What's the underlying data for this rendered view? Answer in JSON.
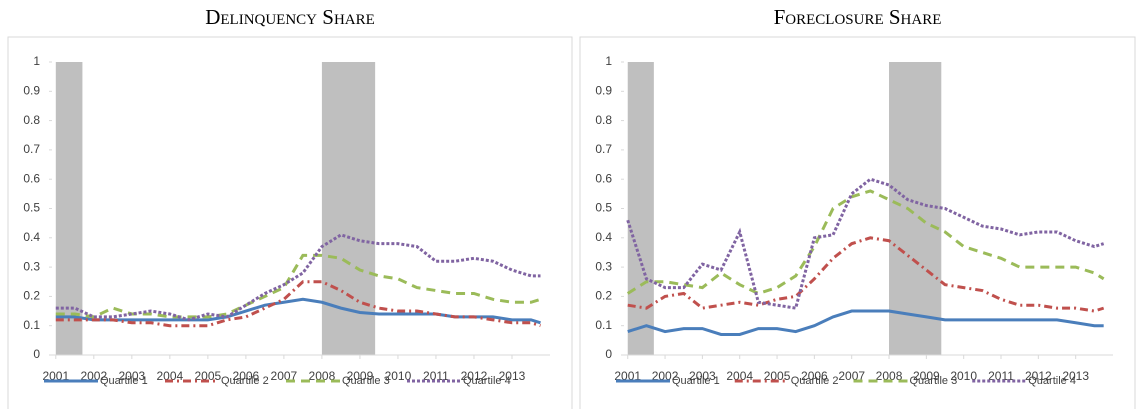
{
  "chart_data": [
    {
      "type": "line",
      "title": "Delinquency Share",
      "x": [
        2001,
        2001.5,
        2002,
        2002.5,
        2003,
        2003.5,
        2004,
        2004.5,
        2005,
        2005.5,
        2006,
        2006.5,
        2007,
        2007.5,
        2008,
        2008.5,
        2009,
        2009.5,
        2010,
        2010.5,
        2011,
        2011.5,
        2012,
        2012.5,
        2013,
        2013.5,
        2013.75
      ],
      "xlim": [
        2000.9,
        2014
      ],
      "xticks": [
        2001,
        2002,
        2003,
        2004,
        2005,
        2006,
        2007,
        2008,
        2009,
        2010,
        2011,
        2012,
        2013
      ],
      "ylim": [
        0,
        1
      ],
      "yticks": [
        0,
        0.1,
        0.2,
        0.3,
        0.4,
        0.5,
        0.6,
        0.7,
        0.8,
        0.9,
        1
      ],
      "grid": false,
      "legend": "bottom",
      "shaded": [
        [
          2001,
          2001.7
        ],
        [
          2008,
          2009.4
        ]
      ],
      "shade_color": "#bfbfbf",
      "series": [
        {
          "name": "Quartile 1",
          "color": "#4a7ebb",
          "dash": "solid",
          "values": [
            0.13,
            0.13,
            0.12,
            0.12,
            0.12,
            0.12,
            0.12,
            0.12,
            0.12,
            0.13,
            0.15,
            0.17,
            0.18,
            0.19,
            0.18,
            0.16,
            0.145,
            0.14,
            0.14,
            0.14,
            0.14,
            0.13,
            0.13,
            0.13,
            0.12,
            0.12,
            0.11
          ]
        },
        {
          "name": "Quartile 2",
          "color": "#c0504d",
          "dash": "dashdot",
          "values": [
            0.12,
            0.12,
            0.12,
            0.12,
            0.11,
            0.11,
            0.1,
            0.1,
            0.1,
            0.12,
            0.13,
            0.16,
            0.19,
            0.25,
            0.25,
            0.22,
            0.18,
            0.16,
            0.15,
            0.15,
            0.14,
            0.13,
            0.13,
            0.12,
            0.11,
            0.11,
            0.1
          ]
        },
        {
          "name": "Quartile 3",
          "color": "#9bbb59",
          "dash": "dashed",
          "values": [
            0.14,
            0.14,
            0.13,
            0.16,
            0.14,
            0.14,
            0.13,
            0.13,
            0.13,
            0.14,
            0.17,
            0.2,
            0.23,
            0.34,
            0.34,
            0.33,
            0.29,
            0.27,
            0.26,
            0.23,
            0.22,
            0.21,
            0.21,
            0.19,
            0.18,
            0.18,
            0.19
          ]
        },
        {
          "name": "Quartile 4",
          "color": "#8064a2",
          "dash": "dotted",
          "values": [
            0.16,
            0.16,
            0.13,
            0.13,
            0.14,
            0.15,
            0.14,
            0.12,
            0.14,
            0.13,
            0.17,
            0.21,
            0.24,
            0.28,
            0.37,
            0.41,
            0.39,
            0.38,
            0.38,
            0.37,
            0.32,
            0.32,
            0.33,
            0.32,
            0.29,
            0.27,
            0.27
          ]
        }
      ]
    },
    {
      "type": "line",
      "title": "Foreclosure Share",
      "x": [
        2001,
        2001.5,
        2002,
        2002.5,
        2003,
        2003.5,
        2004,
        2004.5,
        2005,
        2005.5,
        2006,
        2006.5,
        2007,
        2007.5,
        2008,
        2008.5,
        2009,
        2009.5,
        2010,
        2010.5,
        2011,
        2011.5,
        2012,
        2012.5,
        2013,
        2013.5,
        2013.75
      ],
      "xlim": [
        2000.9,
        2014
      ],
      "xticks": [
        2001,
        2002,
        2003,
        2004,
        2005,
        2006,
        2007,
        2008,
        2009,
        2010,
        2011,
        2012,
        2013
      ],
      "ylim": [
        0,
        1
      ],
      "yticks": [
        0,
        0.1,
        0.2,
        0.3,
        0.4,
        0.5,
        0.6,
        0.7,
        0.8,
        0.9,
        1
      ],
      "grid": false,
      "legend": "bottom",
      "shaded": [
        [
          2001,
          2001.7
        ],
        [
          2008,
          2009.4
        ]
      ],
      "shade_color": "#bfbfbf",
      "series": [
        {
          "name": "Quartile 1",
          "color": "#4a7ebb",
          "dash": "solid",
          "values": [
            0.08,
            0.1,
            0.08,
            0.09,
            0.09,
            0.07,
            0.07,
            0.09,
            0.09,
            0.08,
            0.1,
            0.13,
            0.15,
            0.15,
            0.15,
            0.14,
            0.13,
            0.12,
            0.12,
            0.12,
            0.12,
            0.12,
            0.12,
            0.12,
            0.11,
            0.1,
            0.1
          ]
        },
        {
          "name": "Quartile 2",
          "color": "#c0504d",
          "dash": "dashdot",
          "values": [
            0.17,
            0.16,
            0.2,
            0.21,
            0.16,
            0.17,
            0.18,
            0.17,
            0.19,
            0.2,
            0.26,
            0.33,
            0.38,
            0.4,
            0.39,
            0.34,
            0.29,
            0.24,
            0.23,
            0.22,
            0.19,
            0.17,
            0.17,
            0.16,
            0.16,
            0.15,
            0.16
          ]
        },
        {
          "name": "Quartile 3",
          "color": "#9bbb59",
          "dash": "dashed",
          "values": [
            0.21,
            0.25,
            0.25,
            0.24,
            0.23,
            0.28,
            0.24,
            0.21,
            0.23,
            0.27,
            0.37,
            0.5,
            0.54,
            0.56,
            0.53,
            0.5,
            0.45,
            0.42,
            0.37,
            0.35,
            0.33,
            0.3,
            0.3,
            0.3,
            0.3,
            0.28,
            0.26
          ]
        },
        {
          "name": "Quartile 4",
          "color": "#8064a2",
          "dash": "dotted",
          "values": [
            0.46,
            0.26,
            0.23,
            0.23,
            0.31,
            0.29,
            0.42,
            0.18,
            0.17,
            0.16,
            0.4,
            0.41,
            0.55,
            0.6,
            0.58,
            0.53,
            0.51,
            0.5,
            0.47,
            0.44,
            0.43,
            0.41,
            0.42,
            0.42,
            0.39,
            0.37,
            0.38
          ]
        }
      ]
    }
  ]
}
